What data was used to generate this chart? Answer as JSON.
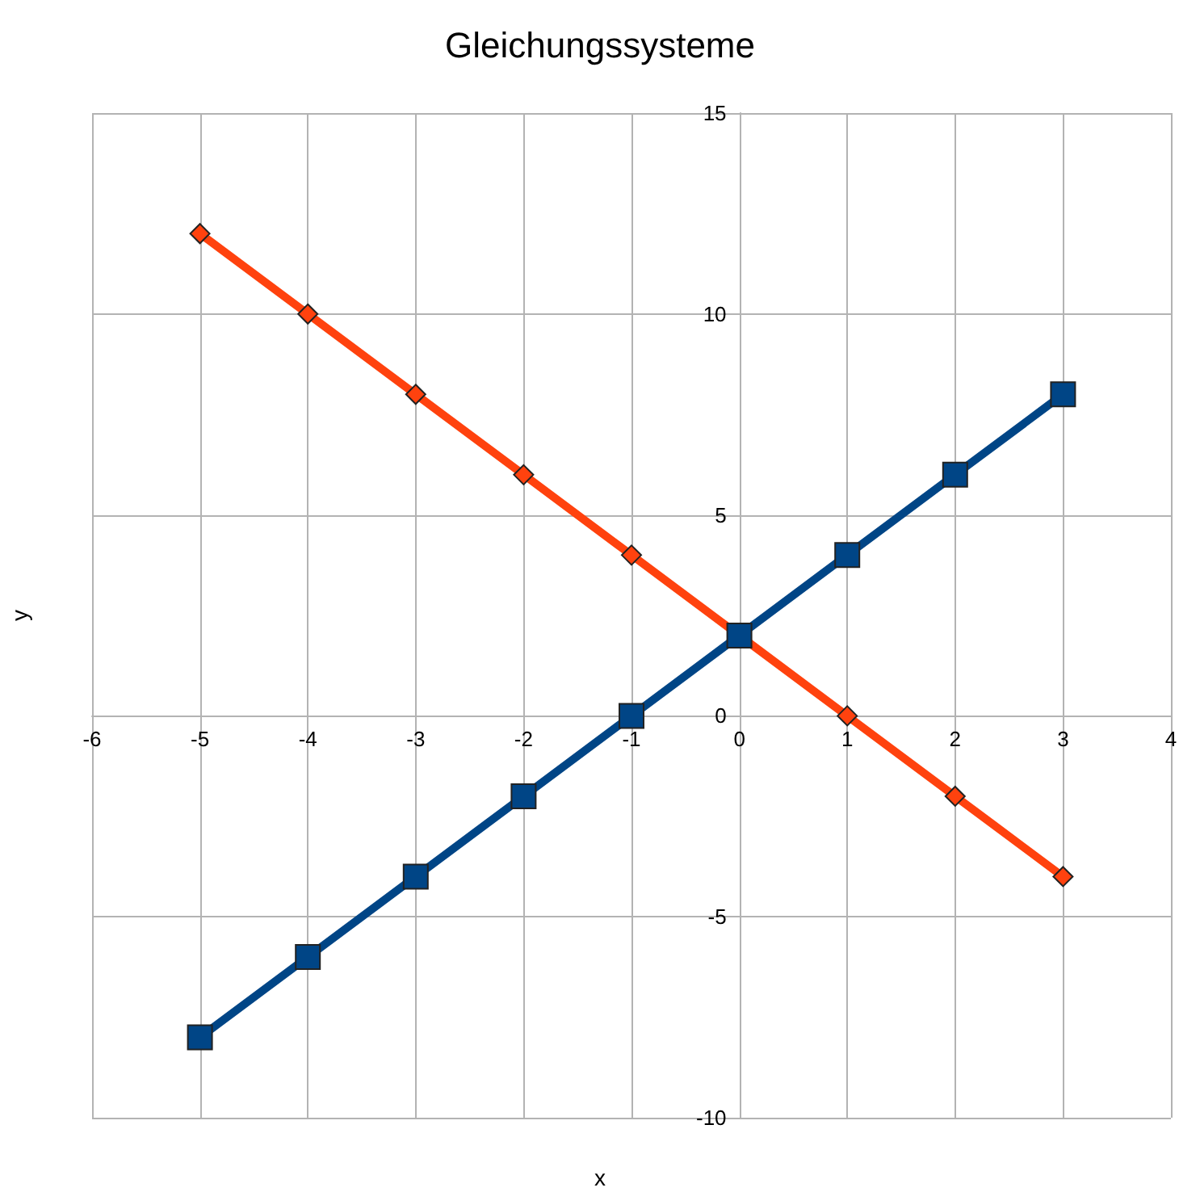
{
  "chart_data": {
    "type": "line",
    "title": "Gleichungssysteme",
    "xlabel": "x",
    "ylabel": "y",
    "x": [
      -5,
      -4,
      -3,
      -2,
      -1,
      0,
      1,
      2,
      3
    ],
    "series": [
      {
        "color": "#004586",
        "marker": "square",
        "values": [
          -8,
          -6,
          -4,
          -2,
          0,
          2,
          4,
          6,
          8
        ]
      },
      {
        "color": "#ff420e",
        "marker": "diamond",
        "values": [
          12,
          10,
          8,
          6,
          4,
          2,
          0,
          -2,
          -4
        ]
      }
    ],
    "xlim": [
      -6,
      4
    ],
    "xticks": [
      -6,
      -5,
      -4,
      -3,
      -2,
      -1,
      0,
      1,
      2,
      3,
      4
    ],
    "ylim": [
      -10,
      15
    ],
    "yticks": [
      -10,
      -5,
      0,
      5,
      10,
      15
    ],
    "grid": true
  }
}
